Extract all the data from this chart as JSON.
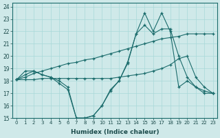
{
  "xlabel": "Humidex (Indice chaleur)",
  "bg_color": "#cfe9e9",
  "line_color": "#1a6b6b",
  "xlim": [
    -0.5,
    23.5
  ],
  "ylim": [
    15,
    24.3
  ],
  "xticks": [
    0,
    1,
    2,
    3,
    4,
    5,
    6,
    7,
    8,
    9,
    10,
    11,
    12,
    13,
    14,
    15,
    16,
    17,
    18,
    19,
    20,
    21,
    22,
    23
  ],
  "yticks": [
    15,
    16,
    17,
    18,
    19,
    20,
    21,
    22,
    23,
    24
  ],
  "s1x": [
    0,
    1,
    2,
    3,
    4,
    5,
    6,
    7,
    8,
    9,
    10,
    11,
    12,
    13,
    14,
    15,
    16,
    17,
    18,
    19,
    20,
    21,
    22,
    23
  ],
  "s1y": [
    18.1,
    18.8,
    18.8,
    18.5,
    18.3,
    18.0,
    17.5,
    15.0,
    15.0,
    15.2,
    16.0,
    17.3,
    18.0,
    19.5,
    21.8,
    23.5,
    22.0,
    23.5,
    22.0,
    17.5,
    18.0,
    17.5,
    17.0,
    17.0
  ],
  "s2x": [
    0,
    1,
    2,
    3,
    4,
    5,
    6,
    7,
    8,
    9,
    10,
    11,
    12,
    13,
    14,
    15,
    16,
    17,
    18,
    19,
    20,
    21,
    22,
    23
  ],
  "s2y": [
    18.1,
    18.5,
    18.8,
    18.5,
    18.3,
    17.8,
    17.3,
    15.0,
    15.0,
    15.2,
    16.0,
    17.2,
    18.0,
    19.4,
    21.8,
    22.5,
    21.8,
    22.2,
    22.2,
    20.0,
    18.3,
    17.5,
    17.2,
    17.0
  ],
  "s3x": [
    0,
    1,
    2,
    3,
    4,
    5,
    6,
    7,
    8,
    9,
    10,
    11,
    12,
    13,
    14,
    15,
    16,
    17,
    18,
    19,
    20,
    21,
    22,
    23
  ],
  "s3y": [
    18.1,
    18.3,
    18.6,
    18.8,
    19.0,
    19.2,
    19.4,
    19.5,
    19.7,
    19.8,
    20.0,
    20.2,
    20.4,
    20.6,
    20.8,
    21.0,
    21.2,
    21.4,
    21.5,
    21.6,
    21.8,
    21.8,
    21.8,
    21.8
  ],
  "s4x": [
    0,
    1,
    2,
    3,
    4,
    5,
    6,
    7,
    8,
    9,
    10,
    11,
    12,
    13,
    14,
    15,
    16,
    17,
    18,
    19,
    20,
    21,
    22,
    23
  ],
  "s4y": [
    18.1,
    18.1,
    18.1,
    18.2,
    18.2,
    18.2,
    18.2,
    18.2,
    18.2,
    18.2,
    18.2,
    18.2,
    18.3,
    18.4,
    18.5,
    18.6,
    18.8,
    19.0,
    19.3,
    19.8,
    20.0,
    18.3,
    17.5,
    17.0
  ]
}
